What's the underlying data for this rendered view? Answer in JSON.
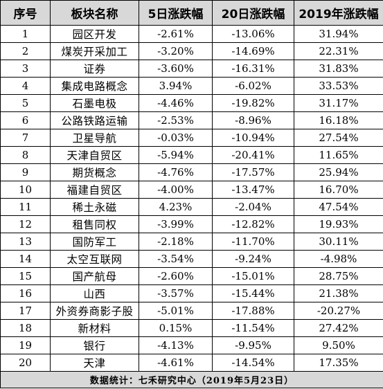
{
  "table": {
    "headers": [
      "序号",
      "板块名称",
      "5日涨跌幅",
      "20日涨跌幅",
      "2019年涨跌幅"
    ],
    "rows": [
      [
        "1",
        "园区开发",
        "-2.61%",
        "-13.06%",
        "31.94%"
      ],
      [
        "2",
        "煤炭开采加工",
        "-3.20%",
        "-14.69%",
        "22.31%"
      ],
      [
        "3",
        "证券",
        "-3.60%",
        "-16.31%",
        "31.83%"
      ],
      [
        "4",
        "集成电路概念",
        "3.94%",
        "-6.02%",
        "33.53%"
      ],
      [
        "5",
        "石墨电极",
        "-4.46%",
        "-19.82%",
        "31.17%"
      ],
      [
        "6",
        "公路铁路运输",
        "-2.53%",
        "-8.96%",
        "16.18%"
      ],
      [
        "7",
        "卫星导航",
        "-0.03%",
        "-10.94%",
        "27.54%"
      ],
      [
        "8",
        "天津自贸区",
        "-5.94%",
        "-20.41%",
        "11.65%"
      ],
      [
        "9",
        "期货概念",
        "-4.76%",
        "-17.57%",
        "25.94%"
      ],
      [
        "10",
        "福建自贸区",
        "-4.00%",
        "-13.47%",
        "16.70%"
      ],
      [
        "11",
        "稀土永磁",
        "4.23%",
        "-2.04%",
        "47.54%"
      ],
      [
        "12",
        "租售同权",
        "-3.99%",
        "-12.82%",
        "19.93%"
      ],
      [
        "13",
        "国防军工",
        "-2.18%",
        "-11.70%",
        "30.11%"
      ],
      [
        "14",
        "太空互联网",
        "-3.54%",
        "-9.24%",
        "-4.98%"
      ],
      [
        "15",
        "国产航母",
        "-2.60%",
        "-15.01%",
        "28.75%"
      ],
      [
        "16",
        "山西",
        "-3.57%",
        "-15.44%",
        "21.38%"
      ],
      [
        "17",
        "外资券商影子股",
        "-5.01%",
        "-17.88%",
        "-20.27%"
      ],
      [
        "18",
        "新材料",
        "0.15%",
        "-11.54%",
        "27.42%"
      ],
      [
        "19",
        "银行",
        "-4.13%",
        "-9.95%",
        "9.50%"
      ],
      [
        "20",
        "天津",
        "-4.61%",
        "-14.54%",
        "17.35%"
      ]
    ],
    "footer": "数据统计：七禾研究中心（2019年5月23日）"
  }
}
